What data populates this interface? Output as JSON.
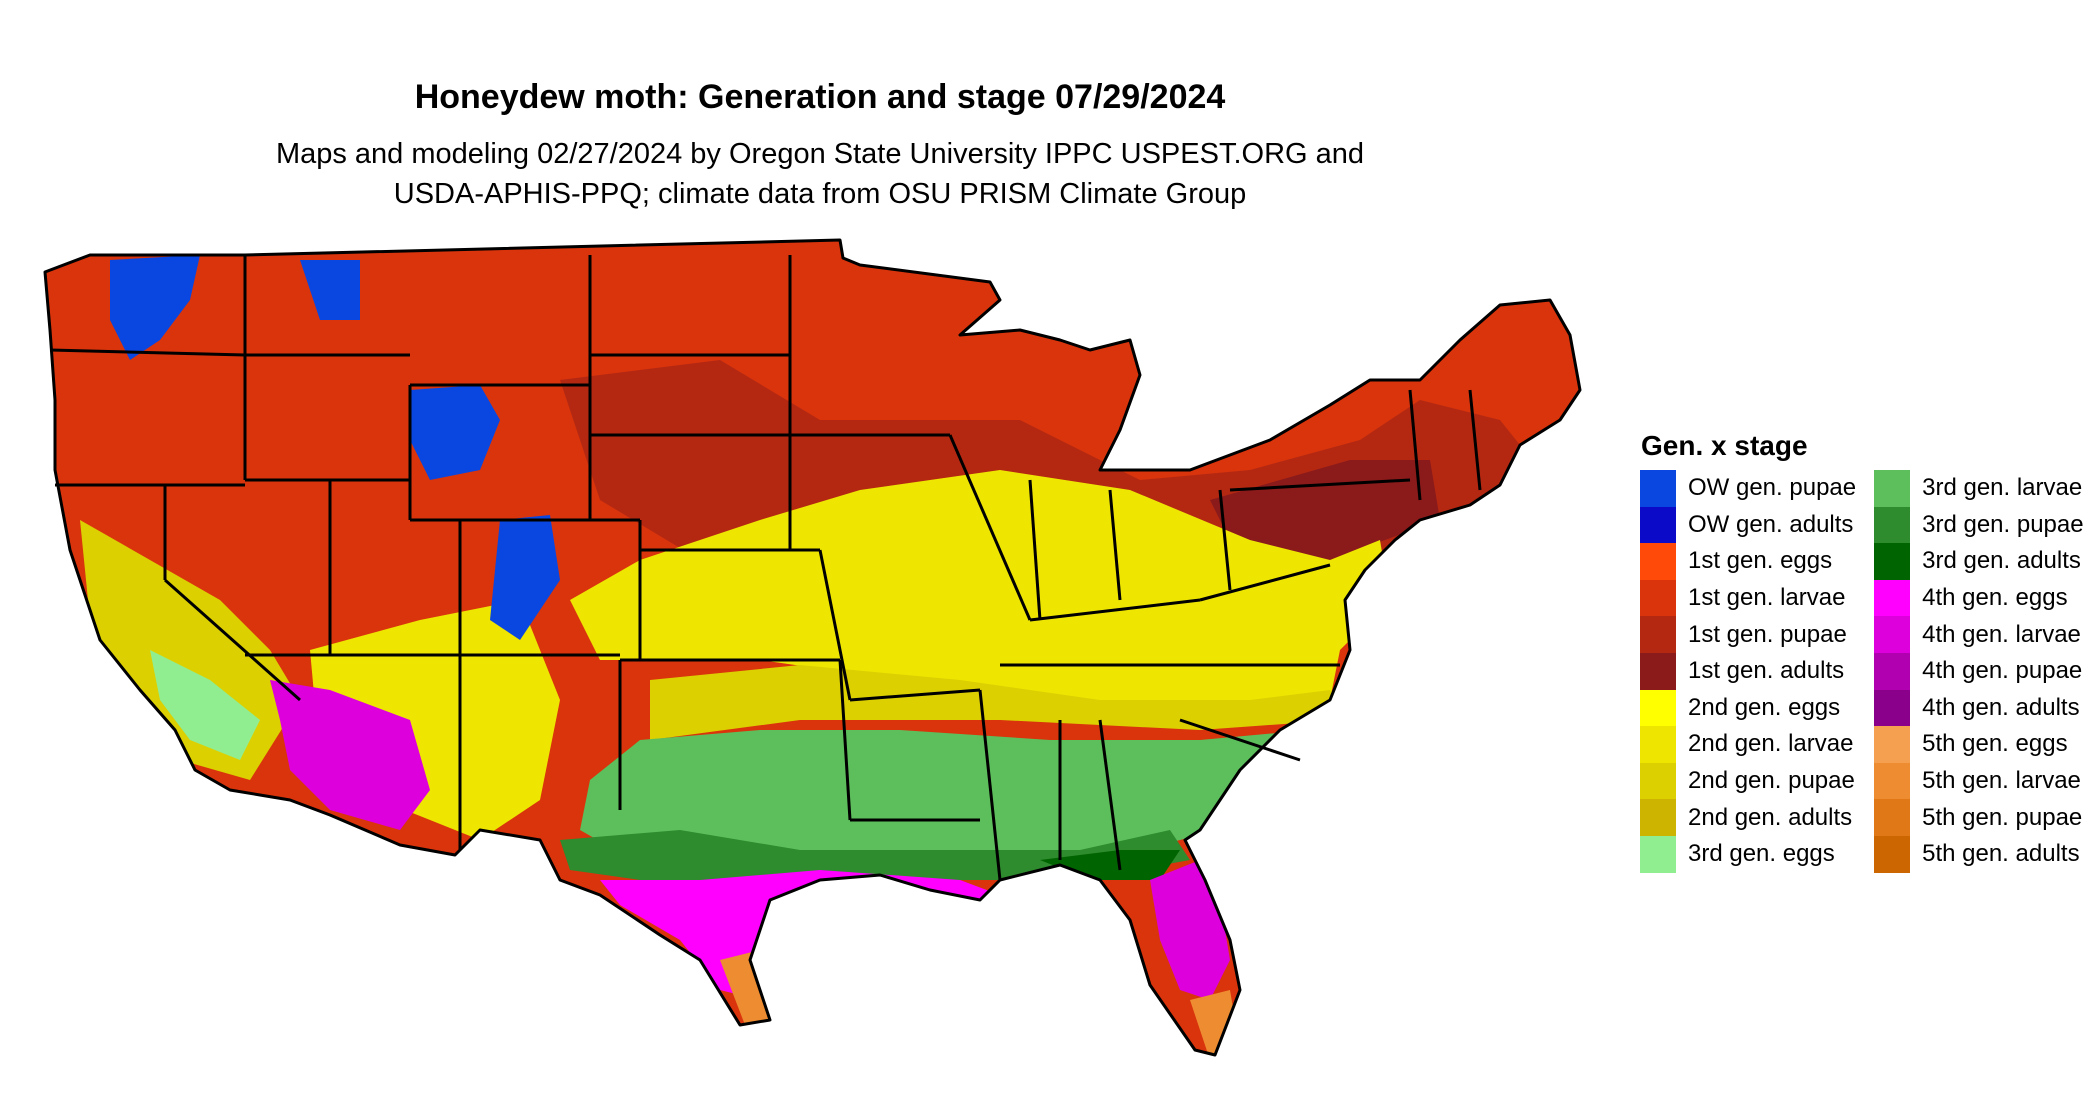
{
  "title": "Honeydew moth: Generation and stage 07/29/2024",
  "subtitle_line1": "Maps and modeling 02/27/2024 by Oregon State University IPPC USPEST.ORG and",
  "subtitle_line2": "USDA-APHIS-PPQ; climate data from OSU PRISM Climate Group",
  "legend": {
    "title": "Gen. x stage",
    "items": [
      {
        "label": "OW gen. pupae",
        "color": "#0a47e0"
      },
      {
        "label": "OW gen. adults",
        "color": "#0a0ac8"
      },
      {
        "label": "1st gen. eggs",
        "color": "#ff4a0a"
      },
      {
        "label": "1st gen. larvae",
        "color": "#d9340c"
      },
      {
        "label": "1st gen. pupae",
        "color": "#b42812"
      },
      {
        "label": "1st gen. adults",
        "color": "#8b1a1a"
      },
      {
        "label": "2nd gen. eggs",
        "color": "#ffff00"
      },
      {
        "label": "2nd gen. larvae",
        "color": "#eee600"
      },
      {
        "label": "2nd gen. pupae",
        "color": "#dcd000"
      },
      {
        "label": "2nd gen. adults",
        "color": "#ccb400"
      },
      {
        "label": "3rd gen. eggs",
        "color": "#90ee90"
      },
      {
        "label": "3rd gen. larvae",
        "color": "#5cbf5c"
      },
      {
        "label": "3rd gen. pupae",
        "color": "#2e8b2e"
      },
      {
        "label": "3rd gen. adults",
        "color": "#006400"
      },
      {
        "label": "4th gen. eggs",
        "color": "#ff00ff"
      },
      {
        "label": "4th gen. larvae",
        "color": "#dd00dd"
      },
      {
        "label": "4th gen. pupae",
        "color": "#b000b0"
      },
      {
        "label": "4th gen. adults",
        "color": "#8b008b"
      },
      {
        "label": "5th gen. eggs",
        "color": "#f5a050"
      },
      {
        "label": "5th gen. larvae",
        "color": "#ee8c32"
      },
      {
        "label": "5th gen. pupae",
        "color": "#e07818"
      },
      {
        "label": "5th gen. adults",
        "color": "#cc6600"
      }
    ]
  }
}
